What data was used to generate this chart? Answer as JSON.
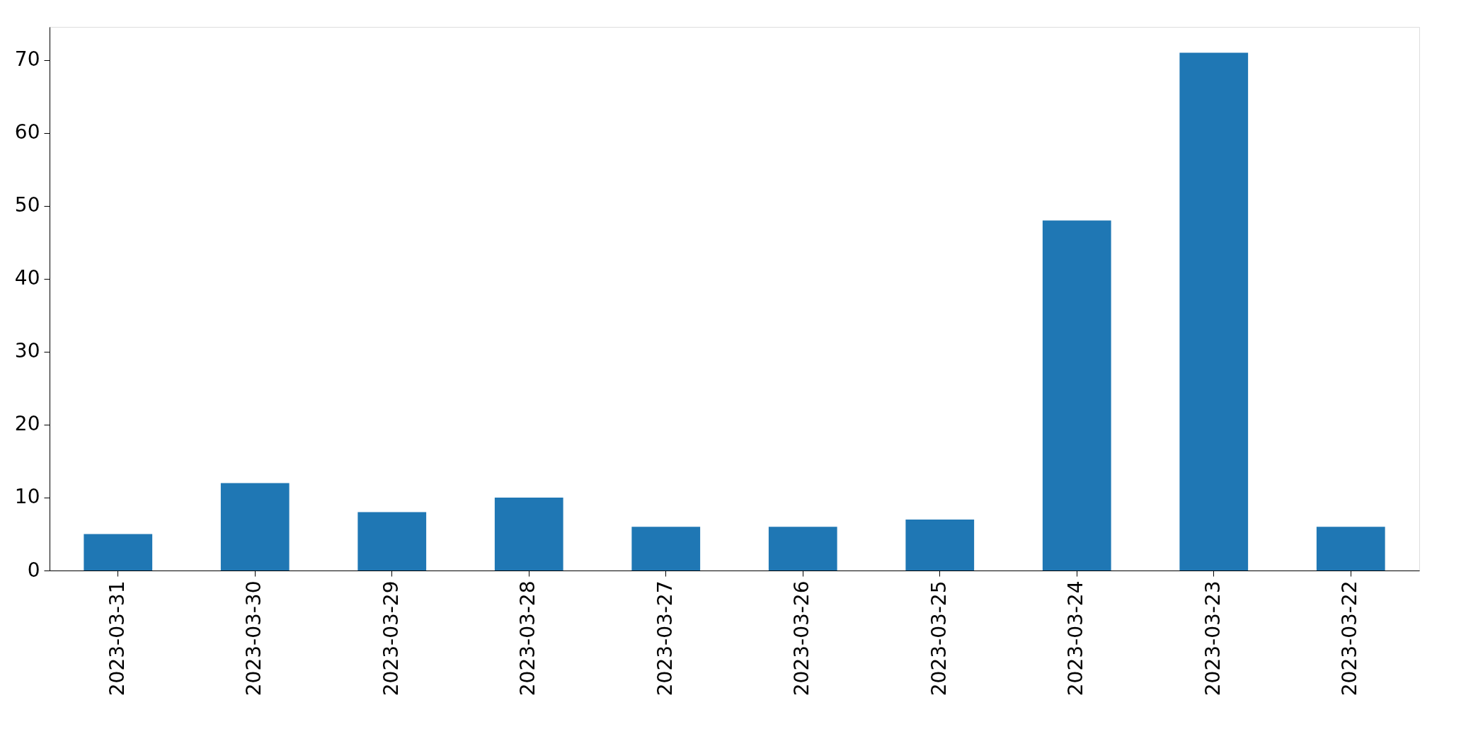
{
  "chart_data": {
    "type": "bar",
    "categories": [
      "2023-03-31",
      "2023-03-30",
      "2023-03-29",
      "2023-03-28",
      "2023-03-27",
      "2023-03-26",
      "2023-03-25",
      "2023-03-24",
      "2023-03-23",
      "2023-03-22"
    ],
    "values": [
      5,
      12,
      8,
      10,
      6,
      6,
      7,
      48,
      71,
      6
    ],
    "color": "#1f77b4",
    "ylim": [
      0,
      74.55
    ],
    "yticks": [
      0,
      10,
      20,
      30,
      40,
      50,
      60,
      70
    ]
  }
}
